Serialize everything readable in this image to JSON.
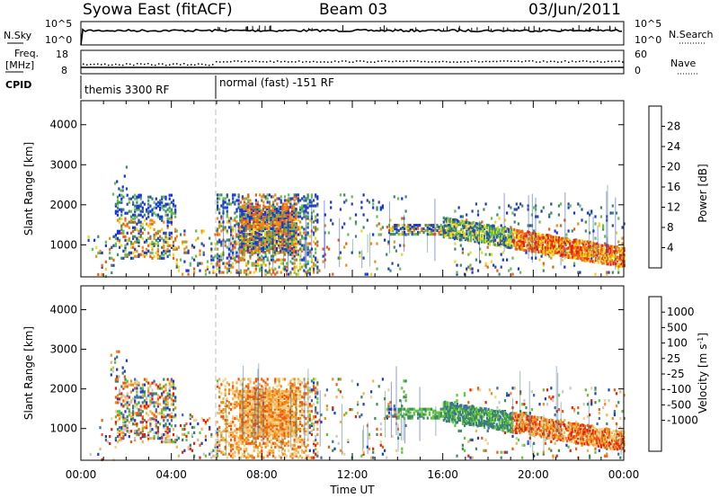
{
  "header": {
    "station": "Syowa East (fitACF)",
    "beam": "Beam 03",
    "date": "03/Jun/2011"
  },
  "strip": {
    "nsky_label": "N.Sky",
    "nsky_ticks": [
      "10^5",
      "10^0"
    ],
    "nsearch_ticks": [
      "10^5",
      "10^0"
    ],
    "nsearch_label": "N.Search",
    "freq_label_1": "Freq.",
    "freq_label_2": "[MHz]",
    "freq_ticks": [
      "18",
      "8"
    ],
    "nave_ticks": [
      "60",
      "0"
    ],
    "nave_label": "Nave",
    "cpid_label": "CPID",
    "cpid_segments": [
      "themis 3300 RF",
      "normal (fast) -151 RF"
    ]
  },
  "chart_data": [
    {
      "type": "heatmap",
      "title": "",
      "ylabel": "Slant Range [km]",
      "xlabel": "",
      "ylim": [
        200,
        4600
      ],
      "yticks": [
        "1000",
        "2000",
        "3000",
        "4000"
      ],
      "xticks": [
        "00:00",
        "04:00",
        "08:00",
        "12:00",
        "16:00",
        "20:00",
        "00:00"
      ],
      "colorbar": {
        "label": "Power [dB]",
        "ticks": [
          "4",
          "8",
          "12",
          "16",
          "20",
          "24",
          "28"
        ],
        "colors": [
          "#1432e6",
          "#2846b4",
          "#3c8c64",
          "#64be50",
          "#f0d714",
          "#f08c14",
          "#f05a14",
          "#e61e14"
        ]
      }
    },
    {
      "type": "heatmap",
      "title": "",
      "ylabel": "Slant Range [km]",
      "xlabel": "Time UT",
      "ylim": [
        200,
        4600
      ],
      "yticks": [
        "1000",
        "2000",
        "3000",
        "4000"
      ],
      "xticks": [
        "00:00",
        "04:00",
        "08:00",
        "12:00",
        "16:00",
        "20:00",
        "00:00"
      ],
      "colorbar": {
        "label": "Velocity [m s-1]",
        "ticks": [
          "1000",
          "500",
          "100",
          "25",
          "-25",
          "-100",
          "-500",
          "-1000"
        ],
        "colors": [
          "#1e3cc8",
          "#3c6ea0",
          "#3c8c5a",
          "#5ac832",
          "#c8c8c8",
          "#f0d28c",
          "#f0b450",
          "#f08c14",
          "#f05a0a",
          "#e61e0a"
        ]
      }
    }
  ]
}
